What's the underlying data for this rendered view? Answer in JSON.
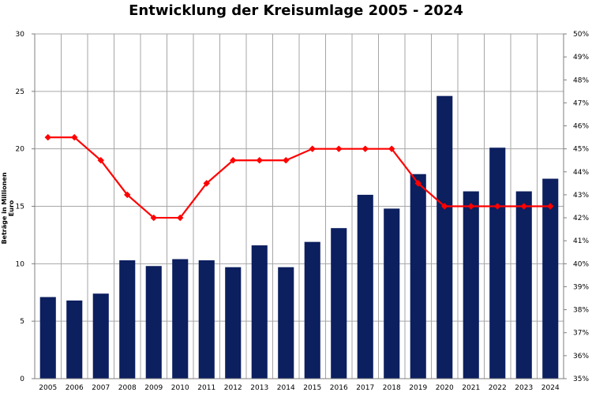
{
  "chart_data": {
    "type": "bar",
    "title": "Entwicklung der Kreisumlage 2005 - 2024",
    "xlabel": "",
    "ylabel": "Beträge in Millionen Euro",
    "categories": [
      "2005",
      "2006",
      "2007",
      "2008",
      "2009",
      "2010",
      "2011",
      "2012",
      "2013",
      "2014",
      "2015",
      "2016",
      "2017",
      "2018",
      "2019",
      "2020",
      "2021",
      "2022",
      "2023",
      "2024"
    ],
    "series": [
      {
        "type": "bar",
        "axis": "left",
        "color": "#0c1f5f",
        "values": [
          7.1,
          6.8,
          7.4,
          10.3,
          9.8,
          10.4,
          10.3,
          9.7,
          11.6,
          9.7,
          11.9,
          13.1,
          16.0,
          14.8,
          17.8,
          24.6,
          16.3,
          20.1,
          16.3,
          17.4
        ]
      },
      {
        "type": "line",
        "axis": "right",
        "color": "#ff0000",
        "values": [
          45.5,
          45.5,
          44.5,
          43.0,
          42.0,
          42.0,
          43.5,
          44.5,
          44.5,
          44.5,
          45.0,
          45.0,
          45.0,
          45.0,
          43.5,
          42.5,
          42.5,
          42.5,
          42.5,
          42.5
        ]
      }
    ],
    "ylim": [
      0,
      30
    ],
    "yticks": [
      "0",
      "5",
      "10",
      "15",
      "20",
      "25",
      "30"
    ],
    "ylim_right": [
      35,
      50
    ],
    "yticks_right": [
      "35%",
      "36%",
      "37%",
      "38%",
      "39%",
      "40%",
      "41%",
      "42%",
      "43%",
      "44%",
      "45%",
      "46%",
      "47%",
      "48%",
      "49%",
      "50%"
    ],
    "grid": true,
    "legend": "none"
  }
}
